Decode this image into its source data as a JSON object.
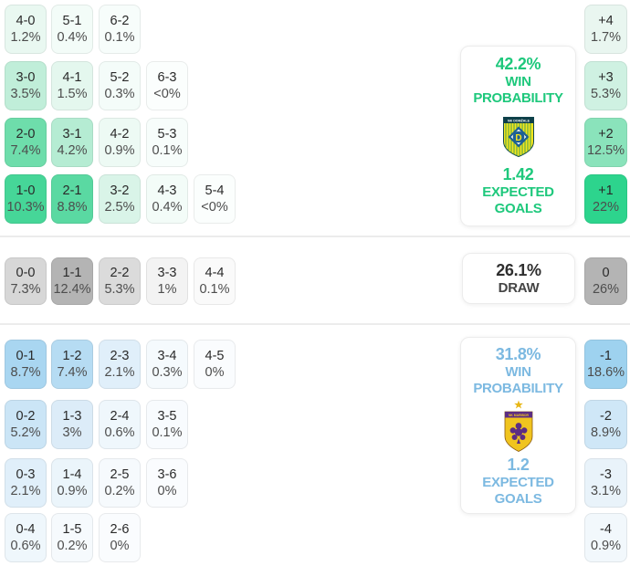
{
  "colors": {
    "home_accent": "#1ec87c",
    "away_accent": "#7cb9e1",
    "draw_text": "#2f2f2f",
    "divider": "#ececec"
  },
  "home_grid": {
    "rows": [
      [
        {
          "score": "4-0",
          "pct": "1.2%",
          "bg": "#e9f8f1"
        },
        {
          "score": "5-1",
          "pct": "0.4%",
          "bg": "#f3fcf8"
        },
        {
          "score": "6-2",
          "pct": "0.1%",
          "bg": "#f7fdfb"
        }
      ],
      [
        {
          "score": "3-0",
          "pct": "3.5%",
          "bg": "#c0eed9"
        },
        {
          "score": "4-1",
          "pct": "1.5%",
          "bg": "#e4f7ee"
        },
        {
          "score": "5-2",
          "pct": "0.3%",
          "bg": "#f4fcf9"
        },
        {
          "score": "6-3",
          "pct": "<0%",
          "bg": "#fbfefd"
        }
      ],
      [
        {
          "score": "2-0",
          "pct": "7.4%",
          "bg": "#6eddab"
        },
        {
          "score": "3-1",
          "pct": "4.2%",
          "bg": "#b5ecd3"
        },
        {
          "score": "4-2",
          "pct": "0.9%",
          "bg": "#edfaf4"
        },
        {
          "score": "5-3",
          "pct": "0.1%",
          "bg": "#f7fdfb"
        }
      ],
      [
        {
          "score": "1-0",
          "pct": "10.3%",
          "bg": "#46d698"
        },
        {
          "score": "2-1",
          "pct": "8.8%",
          "bg": "#5ad9a2"
        },
        {
          "score": "3-2",
          "pct": "2.5%",
          "bg": "#d9f4e8"
        },
        {
          "score": "4-3",
          "pct": "0.4%",
          "bg": "#f3fcf8"
        },
        {
          "score": "5-4",
          "pct": "<0%",
          "bg": "#fbfefd"
        }
      ]
    ]
  },
  "draw_row": [
    {
      "score": "0-0",
      "pct": "7.3%",
      "bg": "#d7d7d7"
    },
    {
      "score": "1-1",
      "pct": "12.4%",
      "bg": "#b4b4b4"
    },
    {
      "score": "2-2",
      "pct": "5.3%",
      "bg": "#dbdbdb"
    },
    {
      "score": "3-3",
      "pct": "1%",
      "bg": "#f3f3f3"
    },
    {
      "score": "4-4",
      "pct": "0.1%",
      "bg": "#fafafa"
    }
  ],
  "away_grid": {
    "rows": [
      [
        {
          "score": "0-1",
          "pct": "8.7%",
          "bg": "#a9d6f1"
        },
        {
          "score": "1-2",
          "pct": "7.4%",
          "bg": "#b6dcf3"
        },
        {
          "score": "2-3",
          "pct": "2.1%",
          "bg": "#e0effa"
        },
        {
          "score": "3-4",
          "pct": "0.3%",
          "bg": "#f5fafd"
        },
        {
          "score": "4-5",
          "pct": "0%",
          "bg": "#fafcfe"
        }
      ],
      [
        {
          "score": "0-2",
          "pct": "5.2%",
          "bg": "#cbe5f6"
        },
        {
          "score": "1-3",
          "pct": "3%",
          "bg": "#dcecf8"
        },
        {
          "score": "2-4",
          "pct": "0.6%",
          "bg": "#eff7fc"
        },
        {
          "score": "3-5",
          "pct": "0.1%",
          "bg": "#f8fbfe"
        }
      ],
      [
        {
          "score": "0-3",
          "pct": "2.1%",
          "bg": "#e0effa"
        },
        {
          "score": "1-4",
          "pct": "0.9%",
          "bg": "#ebf5fb"
        },
        {
          "score": "2-5",
          "pct": "0.2%",
          "bg": "#f6fafd"
        },
        {
          "score": "3-6",
          "pct": "0%",
          "bg": "#fafcfe"
        }
      ],
      [
        {
          "score": "0-4",
          "pct": "0.6%",
          "bg": "#eff7fc"
        },
        {
          "score": "1-5",
          "pct": "0.2%",
          "bg": "#f6fafd"
        },
        {
          "score": "2-6",
          "pct": "0%",
          "bg": "#fafcfe"
        }
      ]
    ]
  },
  "diff_top": [
    {
      "score": "+4",
      "pct": "1.7%",
      "bg": "#e9f6f0"
    },
    {
      "score": "+3",
      "pct": "5.3%",
      "bg": "#cff1e2"
    },
    {
      "score": "+2",
      "pct": "12.5%",
      "bg": "#8ae3bb"
    },
    {
      "score": "+1",
      "pct": "22%",
      "bg": "#2dd48d"
    }
  ],
  "diff_draw": {
    "score": "0",
    "pct": "26%",
    "bg": "#b4b4b4"
  },
  "diff_bottom": [
    {
      "score": "-1",
      "pct": "18.6%",
      "bg": "#9ed2ef"
    },
    {
      "score": "-2",
      "pct": "8.9%",
      "bg": "#cfe7f7"
    },
    {
      "score": "-3",
      "pct": "3.1%",
      "bg": "#e9f3fa"
    },
    {
      "score": "-4",
      "pct": "0.9%",
      "bg": "#f2f8fc"
    }
  ],
  "home_panel": {
    "win_pct": "42.2%",
    "win_line1": "WIN",
    "win_line2": "PROBABILITY",
    "xg": "1.42",
    "xg_line1": "EXPECTED",
    "xg_line2": "GOALS",
    "team": "NK Domžale",
    "team_short": "NK DOMŽALE",
    "logo_letter": "D"
  },
  "draw_panel": {
    "pct": "26.1%",
    "label": "DRAW"
  },
  "away_panel": {
    "win_pct": "31.8%",
    "win_line1": "WIN",
    "win_line2": "PROBABILITY",
    "xg": "1.2",
    "xg_line1": "EXPECTED",
    "xg_line2": "GOALS",
    "team": "NK Maribor",
    "team_short": "NK MARIBOR"
  }
}
